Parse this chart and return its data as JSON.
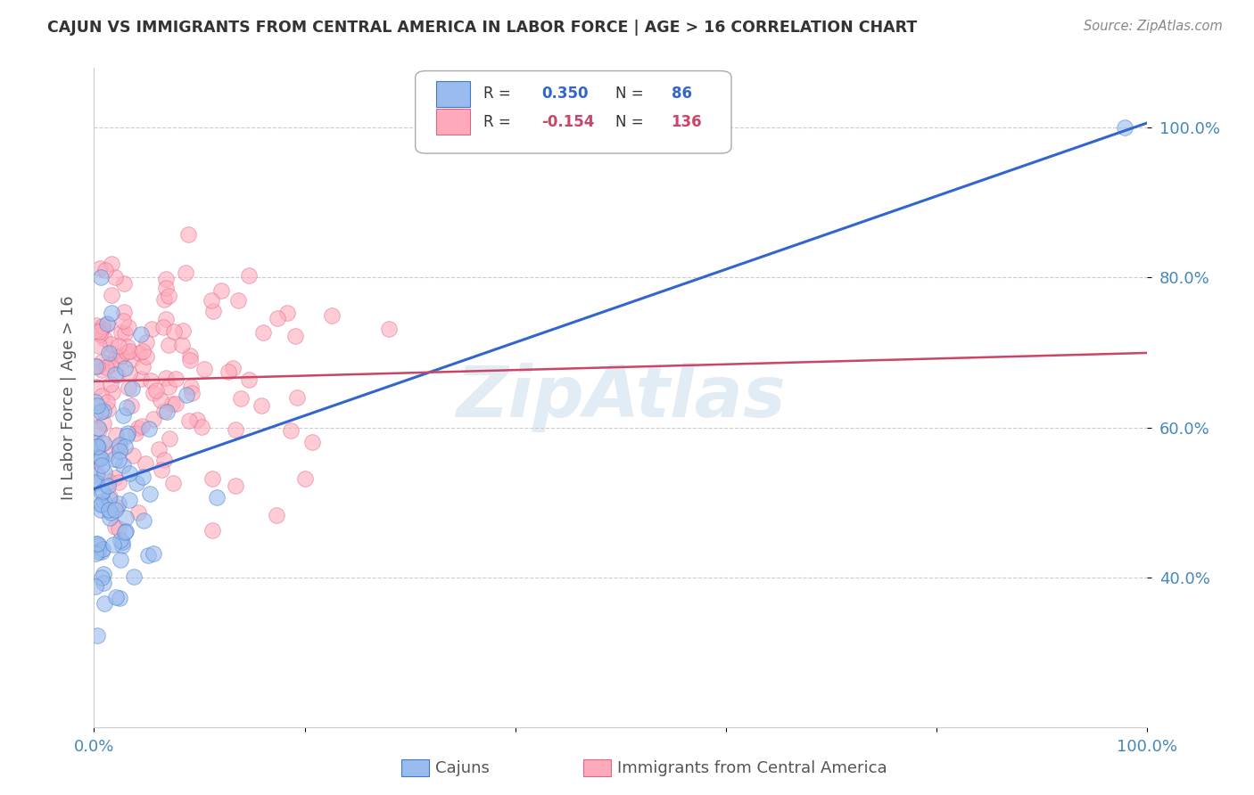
{
  "title": "CAJUN VS IMMIGRANTS FROM CENTRAL AMERICA IN LABOR FORCE | AGE > 16 CORRELATION CHART",
  "source": "Source: ZipAtlas.com",
  "ylabel": "In Labor Force | Age > 16",
  "watermark": "ZipAtlas",
  "legend_cajun_R": 0.35,
  "legend_cajun_N": 86,
  "legend_pink_R": -0.154,
  "legend_pink_N": 136,
  "blue_fill": "#99bbee",
  "blue_edge": "#4477cc",
  "pink_fill": "#ffaabb",
  "pink_edge": "#dd6688",
  "line_blue": "#3366cc",
  "line_pink": "#cc4466",
  "axis_color": "#4488bb",
  "title_color": "#333333",
  "source_color": "#888888",
  "grid_color": "#cccccc",
  "bg_color": "#ffffff",
  "ylabel_color": "#555555",
  "watermark_color": "#b8d0e8"
}
